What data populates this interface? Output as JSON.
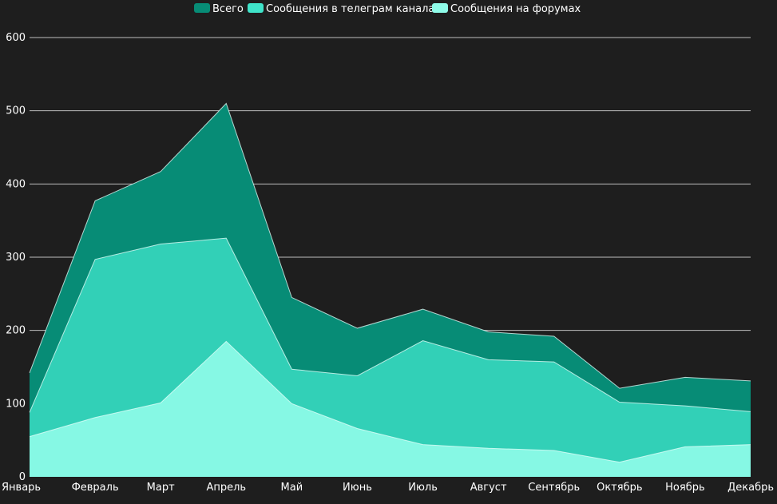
{
  "chart_data": {
    "type": "area",
    "categories": [
      "Январь",
      "Февраль",
      "Март",
      "Апрель",
      "Май",
      "Июнь",
      "Июль",
      "Август",
      "Сентябрь",
      "Октябрь",
      "Ноябрь",
      "Декабрь"
    ],
    "series": [
      {
        "name": "Всего",
        "color": "#078c76",
        "values": [
          142,
          377,
          417,
          510,
          245,
          203,
          229,
          198,
          192,
          121,
          136,
          131
        ]
      },
      {
        "name": "Сообщения в телеграм каналах",
        "color": "#3fe3c9",
        "values": [
          88,
          297,
          318,
          326,
          147,
          138,
          186,
          160,
          157,
          102,
          97,
          89
        ]
      },
      {
        "name": "Сообщения на форумах",
        "color": "#8ffce9",
        "values": [
          55,
          81,
          101,
          185,
          100,
          66,
          44,
          39,
          36,
          20,
          41,
          44
        ]
      }
    ],
    "ylim": [
      0,
      600
    ],
    "yticks": [
      0,
      100,
      200,
      300,
      400,
      500,
      600
    ],
    "grid": true,
    "legend": "top-center"
  }
}
